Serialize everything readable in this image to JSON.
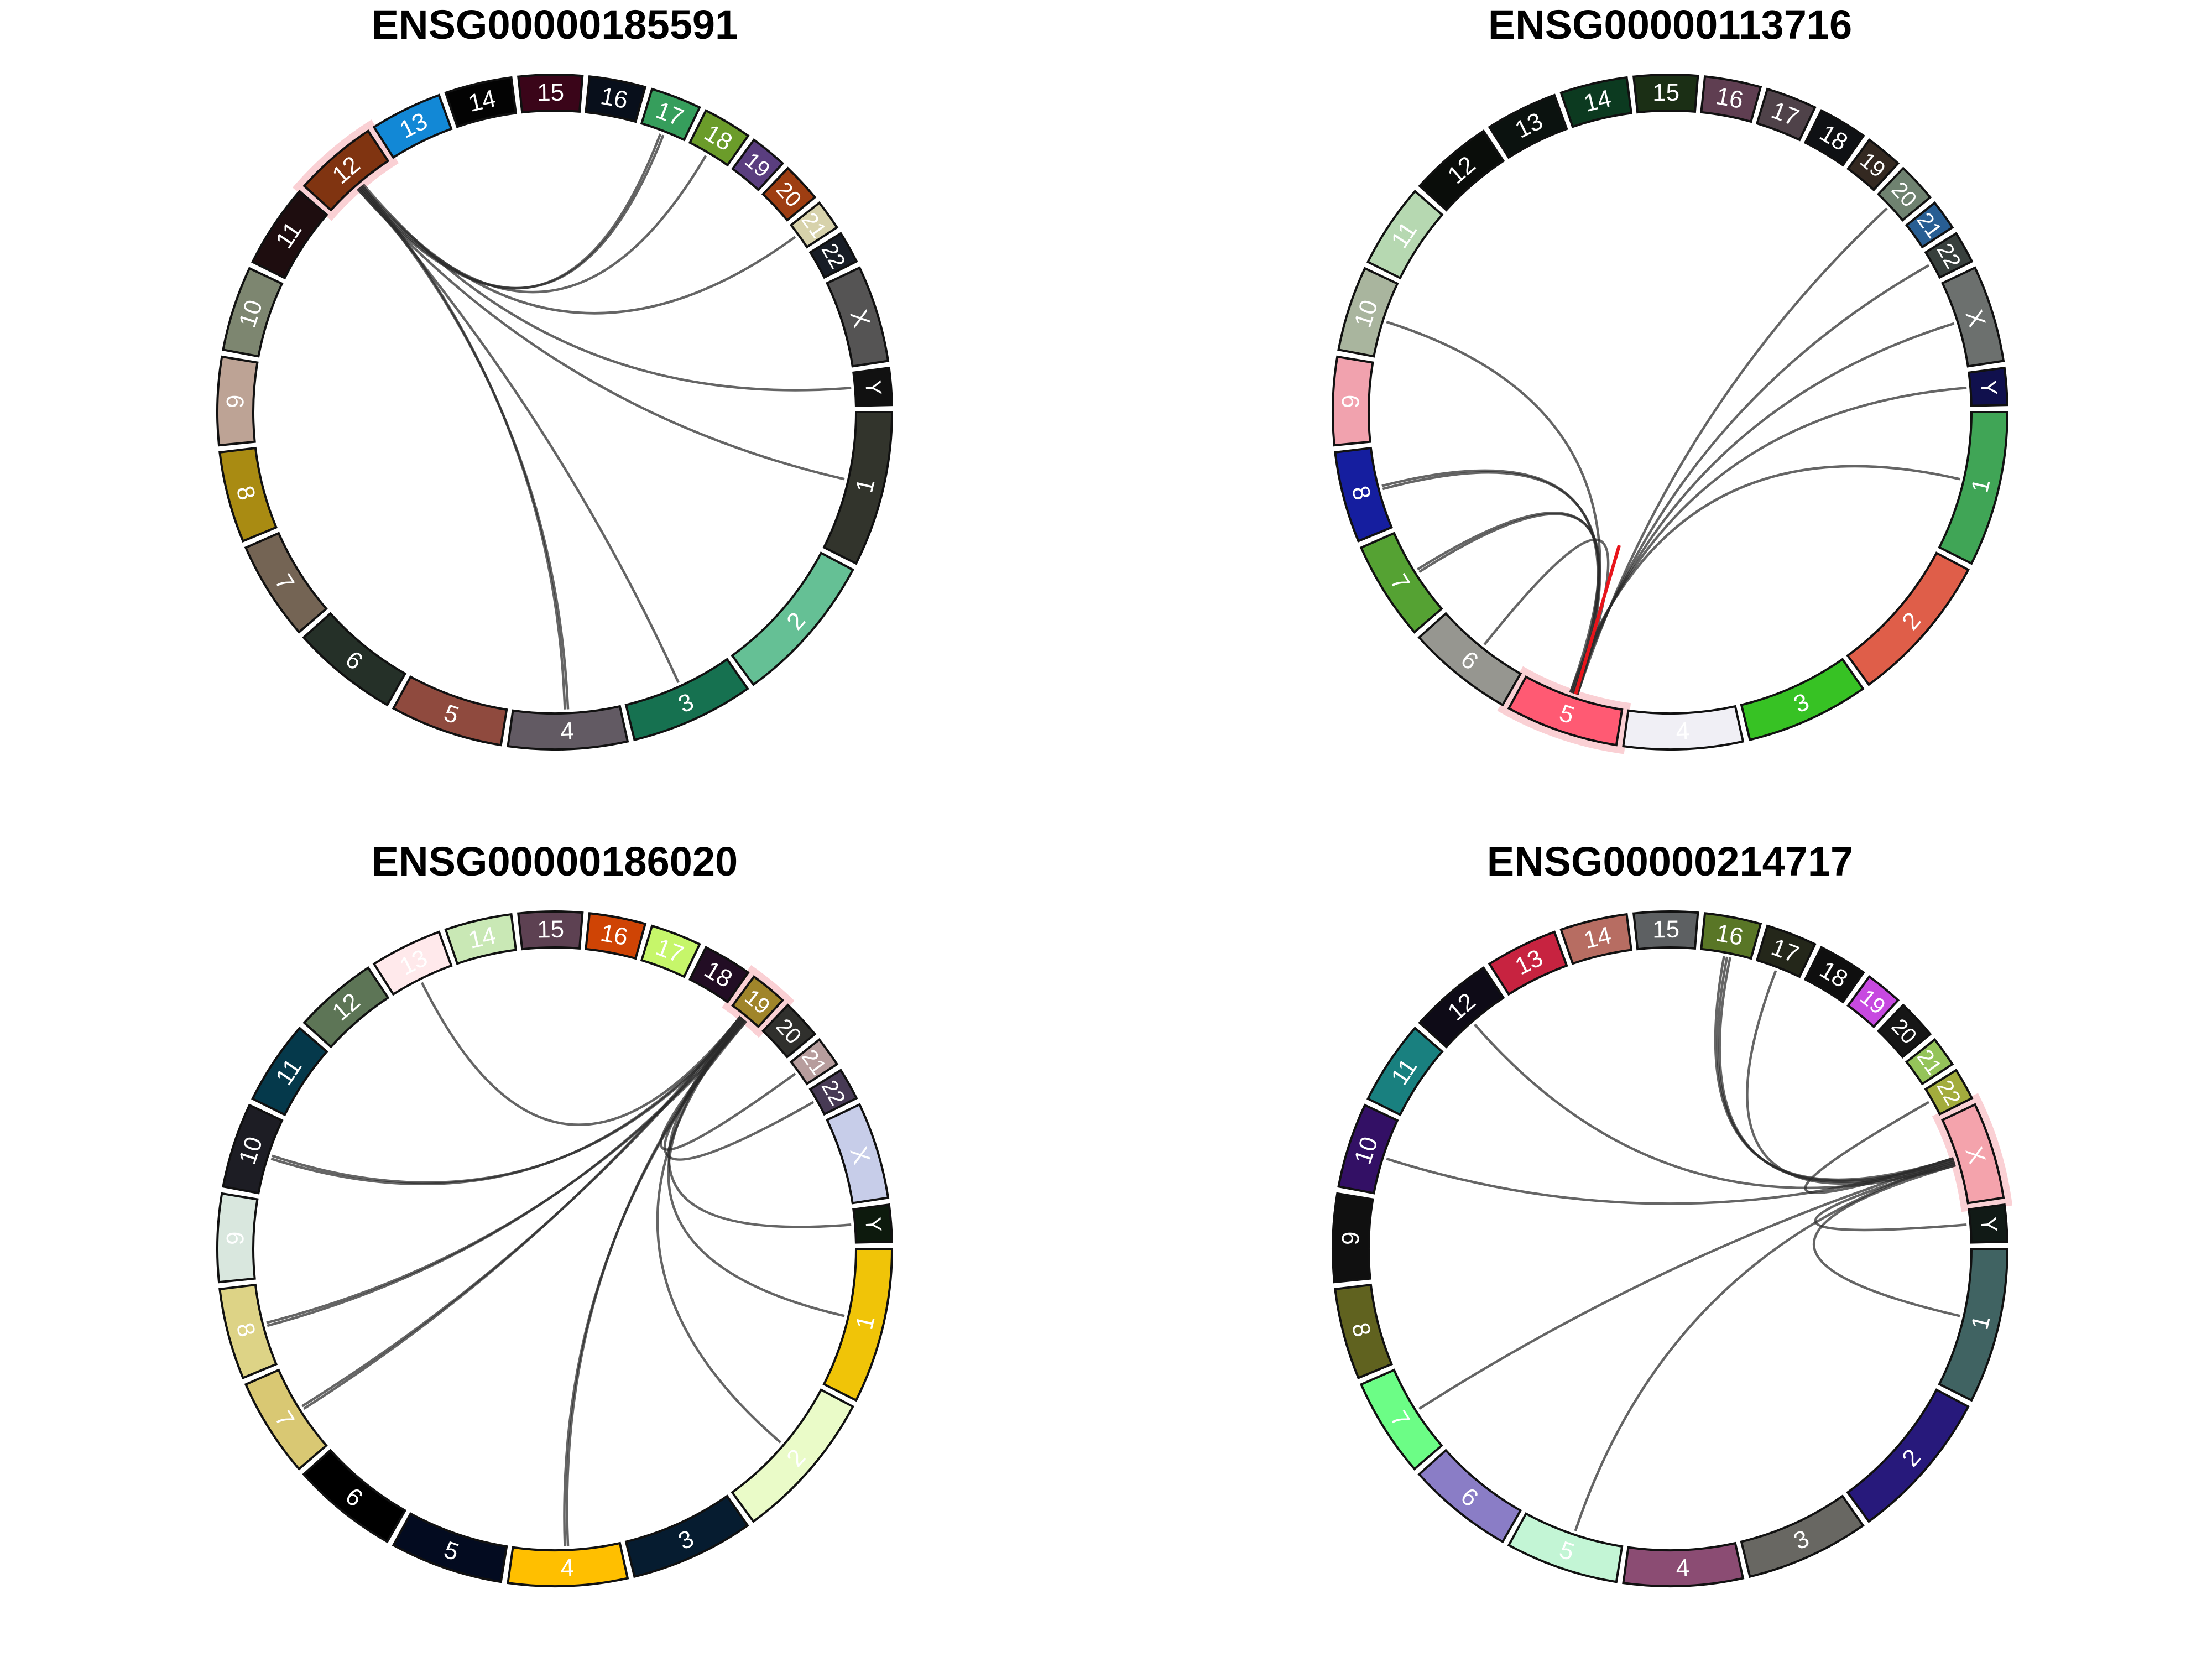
{
  "chromosomes": [
    "1",
    "2",
    "3",
    "4",
    "5",
    "6",
    "7",
    "8",
    "9",
    "10",
    "11",
    "12",
    "13",
    "14",
    "15",
    "16",
    "17",
    "18",
    "19",
    "20",
    "21",
    "22",
    "X",
    "Y"
  ],
  "panels": [
    {
      "title": "ENSG00000185591",
      "highlight": "12",
      "colors": [
        "#32342c",
        "#65c095",
        "#167150",
        "#625a63",
        "#8f4a3e",
        "#253028",
        "#746454",
        "#a98b12",
        "#bda395",
        "#7d8670",
        "#1e0d0f",
        "#803411",
        "#1288d6",
        "#030303",
        "#3a0519",
        "#080f1b",
        "#369e5c",
        "#6b9c2a",
        "#5a3e7f",
        "#9e3e12",
        "#d7d2ab",
        "#181d26",
        "#555454",
        "#111111"
      ],
      "links": [
        {
          "from": "12",
          "to": "17"
        },
        {
          "from": "12",
          "to": "17"
        },
        {
          "from": "12",
          "to": "18"
        },
        {
          "from": "12",
          "to": "21"
        },
        {
          "from": "12",
          "to": "Y"
        },
        {
          "from": "12",
          "to": "1"
        },
        {
          "from": "12",
          "to": "3"
        },
        {
          "from": "12",
          "to": "4"
        },
        {
          "from": "12",
          "to": "4"
        }
      ]
    },
    {
      "title": "ENSG00000113716",
      "highlight": "5",
      "colors": [
        "#40a556",
        "#df5e49",
        "#37c224",
        "#f0eff5",
        "#ff5a73",
        "#969690",
        "#55a233",
        "#151e9f",
        "#f1a2ae",
        "#a9b59e",
        "#b6d8b1",
        "#0a0d0a",
        "#0b120f",
        "#0c3a20",
        "#1b2f15",
        "#5f3e51",
        "#4f4249",
        "#0f1114",
        "#342921",
        "#6f8270",
        "#285e93",
        "#38403d",
        "#6c706e",
        "#10104d"
      ],
      "links": [
        {
          "from": "5",
          "to": "20"
        },
        {
          "from": "5",
          "to": "22"
        },
        {
          "from": "5",
          "to": "X"
        },
        {
          "from": "5",
          "to": "Y"
        },
        {
          "from": "5",
          "to": "1"
        },
        {
          "from": "5",
          "to": "10"
        },
        {
          "from": "5",
          "to": "8"
        },
        {
          "from": "5",
          "to": "8"
        },
        {
          "from": "5",
          "to": "7"
        },
        {
          "from": "5",
          "to": "7"
        },
        {
          "from": "5",
          "to": "6"
        },
        {
          "from": "5",
          "to": "5"
        }
      ]
    },
    {
      "title": "ENSG00000186020",
      "highlight": "19",
      "colors": [
        "#f0c408",
        "#eafbc8",
        "#061c30",
        "#ffbf00",
        "#030b20",
        "#000000",
        "#d9c873",
        "#ddd386",
        "#d9e7de",
        "#1d1d24",
        "#05394b",
        "#5d7556",
        "#ffe9eb",
        "#c9e8b5",
        "#5d4152",
        "#cf4405",
        "#c6f66a",
        "#220d24",
        "#a0852a",
        "#30302d",
        "#b79d9d",
        "#473a54",
        "#c7cde9",
        "#0d1a0d"
      ],
      "links": [
        {
          "from": "19",
          "to": "13"
        },
        {
          "from": "19",
          "to": "10"
        },
        {
          "from": "19",
          "to": "10"
        },
        {
          "from": "19",
          "to": "8"
        },
        {
          "from": "19",
          "to": "8"
        },
        {
          "from": "19",
          "to": "7"
        },
        {
          "from": "19",
          "to": "7"
        },
        {
          "from": "19",
          "to": "4"
        },
        {
          "from": "19",
          "to": "4"
        },
        {
          "from": "19",
          "to": "22"
        },
        {
          "from": "19",
          "to": "Y"
        },
        {
          "from": "19",
          "to": "1"
        },
        {
          "from": "19",
          "to": "2"
        },
        {
          "from": "19",
          "to": "21"
        }
      ]
    },
    {
      "title": "ENSG00000214717",
      "highlight": "X",
      "colors": [
        "#406362",
        "#27197b",
        "#686762",
        "#8b4c73",
        "#c3f5d5",
        "#8a7dc6",
        "#6cfd86",
        "#60621f",
        "#101010",
        "#331065",
        "#19807f",
        "#0e0b17",
        "#c72340",
        "#b76d62",
        "#5d6062",
        "#597626",
        "#24271a",
        "#0f0f0f",
        "#c749e0",
        "#161616",
        "#95c45a",
        "#a3ac3d",
        "#f4a3ac",
        "#111a16"
      ],
      "links": [
        {
          "from": "X",
          "to": "16"
        },
        {
          "from": "X",
          "to": "16"
        },
        {
          "from": "X",
          "to": "16"
        },
        {
          "from": "X",
          "to": "17"
        },
        {
          "from": "X",
          "to": "12"
        },
        {
          "from": "X",
          "to": "10"
        },
        {
          "from": "X",
          "to": "7"
        },
        {
          "from": "X",
          "to": "5"
        },
        {
          "from": "X",
          "to": "Y"
        },
        {
          "from": "X",
          "to": "1"
        },
        {
          "from": "X",
          "to": "22"
        }
      ]
    }
  ]
}
